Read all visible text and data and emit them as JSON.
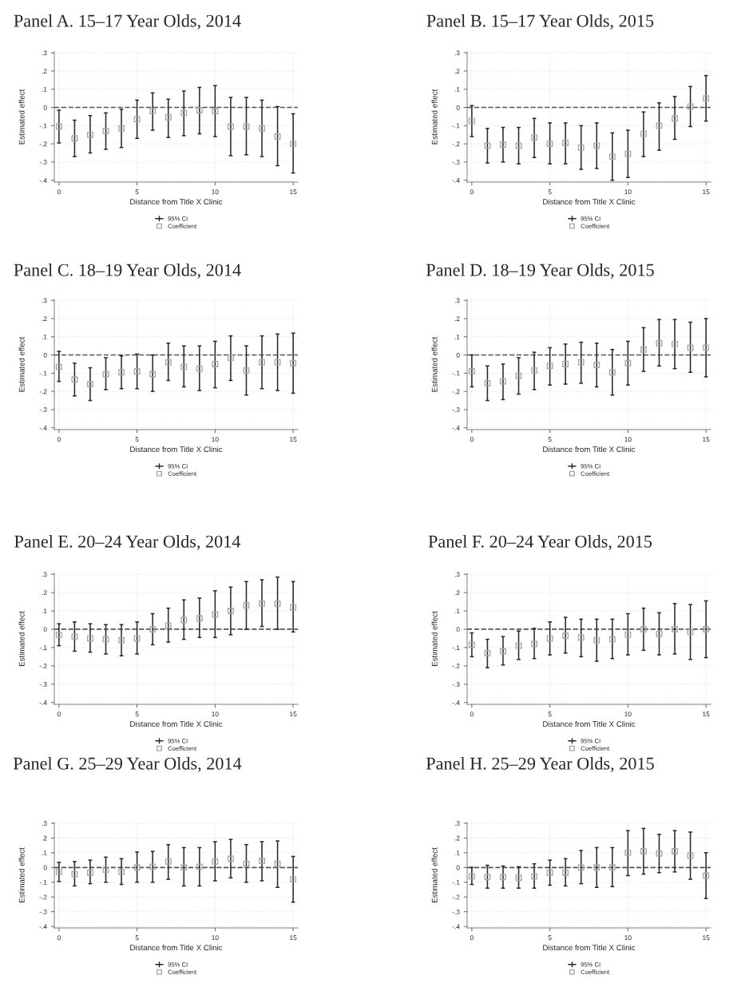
{
  "chart_data": [
    {
      "type": "scatter",
      "title": "Panel A. 15–17 Year Olds, 2014",
      "xlabel": "Distance from Title X Clinic",
      "ylabel": "Estimated effect",
      "annotations": [
        "95% CI"
      ],
      "x": [
        0,
        1,
        2,
        3,
        4,
        5,
        6,
        7,
        8,
        9,
        10,
        11,
        12,
        13,
        14,
        15
      ],
      "xlim": [
        -0.3,
        15.3
      ],
      "xticks": [
        0,
        5,
        10,
        15
      ],
      "ylim": [
        -0.41,
        0.305
      ],
      "yticks": [
        {
          "value": -0.4,
          "label": "-.4"
        },
        {
          "value": -0.3,
          "label": "-.3"
        },
        {
          "value": -0.2,
          "label": "-.2"
        },
        {
          "value": -0.1,
          "label": "-.1"
        },
        0,
        {
          "value": 0.1,
          "label": ".1"
        },
        {
          "value": 0.2,
          "label": ".2"
        },
        {
          "value": 0.3,
          "label": ".3"
        }
      ],
      "grid": true,
      "legend": "bottom",
      "marker": "square",
      "ref_lines": [
        {
          "axis": "y",
          "value": 0,
          "line_style": "dashed",
          "color": "#555555"
        }
      ],
      "series": [
        {
          "name": "Coefficient",
          "color": "#a6a6a6",
          "values": [
            -0.105,
            -0.17,
            -0.15,
            -0.13,
            -0.115,
            -0.065,
            -0.02,
            -0.055,
            -0.03,
            -0.015,
            -0.02,
            -0.105,
            -0.105,
            -0.115,
            -0.16,
            -0.2
          ],
          "errors": [
            [
              -0.195,
              -0.015
            ],
            [
              -0.27,
              -0.07
            ],
            [
              -0.25,
              -0.045
            ],
            [
              -0.23,
              -0.03
            ],
            [
              -0.22,
              -0.01
            ],
            [
              -0.17,
              0.04
            ],
            [
              -0.125,
              0.08
            ],
            [
              -0.165,
              0.045
            ],
            [
              -0.155,
              0.09
            ],
            [
              -0.145,
              0.11
            ],
            [
              -0.16,
              0.12
            ],
            [
              -0.265,
              0.055
            ],
            [
              -0.26,
              0.055
            ],
            [
              -0.27,
              0.04
            ],
            [
              -0.32,
              0.005
            ],
            [
              -0.36,
              -0.035
            ]
          ]
        }
      ]
    },
    {
      "type": "scatter",
      "title": "Panel B. 15–17 Year Olds, 2015",
      "xlabel": "Distance from Title X Clinic",
      "ylabel": "Estimated effect",
      "annotations": [
        "95% CI"
      ],
      "x": [
        0,
        1,
        2,
        3,
        4,
        5,
        6,
        7,
        8,
        9,
        10,
        11,
        12,
        13,
        14,
        15
      ],
      "xlim": [
        -0.3,
        15.3
      ],
      "xticks": [
        0,
        5,
        10,
        15
      ],
      "ylim": [
        -0.41,
        0.305
      ],
      "yticks": [
        {
          "value": -0.4,
          "label": "-.4"
        },
        {
          "value": -0.3,
          "label": "-.3"
        },
        {
          "value": -0.2,
          "label": "-.2"
        },
        {
          "value": -0.1,
          "label": "-.1"
        },
        0,
        {
          "value": 0.1,
          "label": ".1"
        },
        {
          "value": 0.2,
          "label": ".2"
        },
        {
          "value": 0.3,
          "label": ".3"
        }
      ],
      "grid": true,
      "legend": "bottom",
      "marker": "square",
      "ref_lines": [
        {
          "axis": "y",
          "value": 0,
          "line_style": "dashed",
          "color": "#555555"
        }
      ],
      "series": [
        {
          "name": "Coefficient",
          "color": "#a6a6a6",
          "values": [
            -0.075,
            -0.21,
            -0.205,
            -0.21,
            -0.165,
            -0.2,
            -0.195,
            -0.22,
            -0.21,
            -0.27,
            -0.255,
            -0.145,
            -0.1,
            -0.06,
            0.005,
            0.05
          ],
          "errors": [
            [
              -0.16,
              0.01
            ],
            [
              -0.305,
              -0.115
            ],
            [
              -0.3,
              -0.11
            ],
            [
              -0.31,
              -0.11
            ],
            [
              -0.275,
              -0.06
            ],
            [
              -0.31,
              -0.085
            ],
            [
              -0.31,
              -0.085
            ],
            [
              -0.34,
              -0.1
            ],
            [
              -0.335,
              -0.085
            ],
            [
              -0.4,
              -0.14
            ],
            [
              -0.385,
              -0.125
            ],
            [
              -0.27,
              -0.025
            ],
            [
              -0.235,
              0.025
            ],
            [
              -0.175,
              0.06
            ],
            [
              -0.105,
              0.115
            ],
            [
              -0.075,
              0.175
            ]
          ]
        }
      ]
    },
    {
      "type": "scatter",
      "title": "Panel C. 18–19 Year Olds, 2014",
      "xlabel": "Distance from Title X Clinic",
      "ylabel": "Estimated effect",
      "annotations": [
        "95% CI"
      ],
      "x": [
        0,
        1,
        2,
        3,
        4,
        5,
        6,
        7,
        8,
        9,
        10,
        11,
        12,
        13,
        14,
        15
      ],
      "xlim": [
        -0.3,
        15.3
      ],
      "xticks": [
        0,
        5,
        10,
        15
      ],
      "ylim": [
        -0.41,
        0.305
      ],
      "yticks": [
        {
          "value": -0.4,
          "label": "-.4"
        },
        {
          "value": -0.3,
          "label": "-.3"
        },
        {
          "value": -0.2,
          "label": "-.2"
        },
        {
          "value": -0.1,
          "label": "-.1"
        },
        0,
        {
          "value": 0.1,
          "label": ".1"
        },
        {
          "value": 0.2,
          "label": ".2"
        },
        {
          "value": 0.3,
          "label": ".3"
        }
      ],
      "grid": true,
      "legend": "bottom",
      "marker": "square",
      "ref_lines": [
        {
          "axis": "y",
          "value": 0,
          "line_style": "dashed",
          "color": "#555555"
        }
      ],
      "series": [
        {
          "name": "Coefficient",
          "color": "#a6a6a6",
          "values": [
            -0.065,
            -0.135,
            -0.16,
            -0.105,
            -0.095,
            -0.09,
            -0.105,
            -0.04,
            -0.065,
            -0.075,
            -0.05,
            -0.015,
            -0.085,
            -0.04,
            -0.04,
            -0.045
          ],
          "errors": [
            [
              -0.145,
              0.02
            ],
            [
              -0.225,
              -0.045
            ],
            [
              -0.25,
              -0.07
            ],
            [
              -0.19,
              -0.015
            ],
            [
              -0.185,
              -0.005
            ],
            [
              -0.185,
              0.005
            ],
            [
              -0.2,
              0
            ],
            [
              -0.14,
              0.065
            ],
            [
              -0.175,
              0.05
            ],
            [
              -0.195,
              0.05
            ],
            [
              -0.18,
              0.075
            ],
            [
              -0.14,
              0.105
            ],
            [
              -0.22,
              0.05
            ],
            [
              -0.185,
              0.105
            ],
            [
              -0.195,
              0.115
            ],
            [
              -0.21,
              0.12
            ]
          ]
        }
      ]
    },
    {
      "type": "scatter",
      "title": "Panel D. 18–19 Year Olds, 2015",
      "xlabel": "Distance from Title X Clinic",
      "ylabel": "Estimated effect",
      "annotations": [
        "95% CI"
      ],
      "x": [
        0,
        1,
        2,
        3,
        4,
        5,
        6,
        7,
        8,
        9,
        10,
        11,
        12,
        13,
        14,
        15
      ],
      "xlim": [
        -0.3,
        15.3
      ],
      "xticks": [
        0,
        5,
        10,
        15
      ],
      "ylim": [
        -0.41,
        0.305
      ],
      "yticks": [
        {
          "value": -0.4,
          "label": "-.4"
        },
        {
          "value": -0.3,
          "label": "-.3"
        },
        {
          "value": -0.2,
          "label": "-.2"
        },
        {
          "value": -0.1,
          "label": "-.1"
        },
        0,
        {
          "value": 0.1,
          "label": ".1"
        },
        {
          "value": 0.2,
          "label": ".2"
        },
        {
          "value": 0.3,
          "label": ".3"
        }
      ],
      "grid": true,
      "legend": "bottom",
      "marker": "square",
      "ref_lines": [
        {
          "axis": "y",
          "value": 0,
          "line_style": "dashed",
          "color": "#555555"
        }
      ],
      "series": [
        {
          "name": "Coefficient",
          "color": "#a6a6a6",
          "values": [
            -0.09,
            -0.155,
            -0.145,
            -0.115,
            -0.085,
            -0.06,
            -0.05,
            -0.04,
            -0.055,
            -0.095,
            -0.045,
            0.03,
            0.065,
            0.06,
            0.04,
            0.04
          ],
          "errors": [
            [
              -0.175,
              0
            ],
            [
              -0.25,
              -0.06
            ],
            [
              -0.245,
              -0.05
            ],
            [
              -0.215,
              -0.015
            ],
            [
              -0.19,
              0.015
            ],
            [
              -0.165,
              0.04
            ],
            [
              -0.16,
              0.06
            ],
            [
              -0.155,
              0.07
            ],
            [
              -0.175,
              0.065
            ],
            [
              -0.22,
              0.03
            ],
            [
              -0.165,
              0.075
            ],
            [
              -0.09,
              0.15
            ],
            [
              -0.06,
              0.195
            ],
            [
              -0.075,
              0.195
            ],
            [
              -0.095,
              0.18
            ],
            [
              -0.12,
              0.2
            ]
          ]
        }
      ]
    },
    {
      "type": "scatter",
      "title": "Panel E. 20–24 Year Olds, 2014",
      "xlabel": "Distance from Title X Clinic",
      "ylabel": "Estimated effect",
      "annotations": [
        "95% CI"
      ],
      "x": [
        0,
        1,
        2,
        3,
        4,
        5,
        6,
        7,
        8,
        9,
        10,
        11,
        12,
        13,
        14,
        15
      ],
      "xlim": [
        -0.3,
        15.3
      ],
      "xticks": [
        0,
        5,
        10,
        15
      ],
      "ylim": [
        -0.41,
        0.305
      ],
      "yticks": [
        {
          "value": -0.4,
          "label": "-.4"
        },
        {
          "value": -0.3,
          "label": "-.3"
        },
        {
          "value": -0.2,
          "label": "-.2"
        },
        {
          "value": -0.1,
          "label": "-.1"
        },
        0,
        {
          "value": 0.1,
          "label": ".1"
        },
        {
          "value": 0.2,
          "label": ".2"
        },
        {
          "value": 0.3,
          "label": ".3"
        }
      ],
      "grid": true,
      "legend": "bottom",
      "marker": "square",
      "ref_lines": [
        {
          "axis": "y",
          "value": 0,
          "line_style": "dashed",
          "color": "#555555"
        }
      ],
      "series": [
        {
          "name": "Coefficient",
          "color": "#a6a6a6",
          "values": [
            -0.03,
            -0.04,
            -0.05,
            -0.055,
            -0.06,
            -0.05,
            0,
            0.02,
            0.05,
            0.06,
            0.08,
            0.1,
            0.13,
            0.14,
            0.14,
            0.12
          ],
          "errors": [
            [
              -0.09,
              0.03
            ],
            [
              -0.12,
              0.04
            ],
            [
              -0.125,
              0.03
            ],
            [
              -0.135,
              0.025
            ],
            [
              -0.145,
              0.025
            ],
            [
              -0.135,
              0.04
            ],
            [
              -0.085,
              0.085
            ],
            [
              -0.07,
              0.115
            ],
            [
              -0.055,
              0.16
            ],
            [
              -0.045,
              0.17
            ],
            [
              -0.045,
              0.21
            ],
            [
              -0.03,
              0.23
            ],
            [
              0,
              0.26
            ],
            [
              0.015,
              0.27
            ],
            [
              0,
              0.285
            ],
            [
              -0.015,
              0.26
            ]
          ]
        }
      ]
    },
    {
      "type": "scatter",
      "title": "Panel F. 20–24 Year Olds, 2015",
      "xlabel": "Distance from Title X Clinic",
      "ylabel": "Estimated effect",
      "annotations": [
        "95% CI"
      ],
      "x": [
        0,
        1,
        2,
        3,
        4,
        5,
        6,
        7,
        8,
        9,
        10,
        11,
        12,
        13,
        14,
        15
      ],
      "xlim": [
        -0.3,
        15.3
      ],
      "xticks": [
        0,
        5,
        10,
        15
      ],
      "ylim": [
        -0.41,
        0.305
      ],
      "yticks": [
        {
          "value": -0.4,
          "label": "-.4"
        },
        {
          "value": -0.3,
          "label": "-.3"
        },
        {
          "value": -0.2,
          "label": "-.2"
        },
        {
          "value": -0.1,
          "label": "-.1"
        },
        0,
        {
          "value": 0.1,
          "label": ".1"
        },
        {
          "value": 0.2,
          "label": ".2"
        },
        {
          "value": 0.3,
          "label": ".3"
        }
      ],
      "grid": true,
      "legend": "bottom",
      "marker": "square",
      "ref_lines": [
        {
          "axis": "y",
          "value": 0,
          "line_style": "dashed",
          "color": "#555555"
        }
      ],
      "series": [
        {
          "name": "Coefficient",
          "color": "#a6a6a6",
          "values": [
            -0.085,
            -0.13,
            -0.12,
            -0.09,
            -0.08,
            -0.05,
            -0.035,
            -0.045,
            -0.06,
            -0.055,
            -0.03,
            0,
            -0.025,
            0,
            -0.015,
            0
          ],
          "errors": [
            [
              -0.15,
              -0.02
            ],
            [
              -0.21,
              -0.055
            ],
            [
              -0.195,
              -0.04
            ],
            [
              -0.165,
              -0.01
            ],
            [
              -0.16,
              0.005
            ],
            [
              -0.14,
              0.04
            ],
            [
              -0.13,
              0.065
            ],
            [
              -0.15,
              0.055
            ],
            [
              -0.175,
              0.055
            ],
            [
              -0.16,
              0.055
            ],
            [
              -0.14,
              0.085
            ],
            [
              -0.115,
              0.115
            ],
            [
              -0.14,
              0.09
            ],
            [
              -0.135,
              0.14
            ],
            [
              -0.165,
              0.135
            ],
            [
              -0.155,
              0.155
            ]
          ]
        }
      ]
    },
    {
      "type": "scatter",
      "title": "Panel G. 25–29 Year Olds, 2014",
      "xlabel": "Distance from Title X Clinic",
      "ylabel": "Estimated effect",
      "annotations": [
        "95% CI"
      ],
      "x": [
        0,
        1,
        2,
        3,
        4,
        5,
        6,
        7,
        8,
        9,
        10,
        11,
        12,
        13,
        14,
        15
      ],
      "xlim": [
        -0.3,
        15.3
      ],
      "xticks": [
        0,
        5,
        10,
        15
      ],
      "ylim": [
        -0.41,
        0.305
      ],
      "yticks": [
        {
          "value": -0.4,
          "label": "-.4"
        },
        {
          "value": -0.3,
          "label": "-.3"
        },
        {
          "value": -0.2,
          "label": "-.2"
        },
        {
          "value": -0.1,
          "label": "-.1"
        },
        0,
        {
          "value": 0.1,
          "label": ".1"
        },
        {
          "value": 0.2,
          "label": ".2"
        },
        {
          "value": 0.3,
          "label": ".3"
        }
      ],
      "grid": true,
      "legend": "bottom",
      "marker": "square",
      "ref_lines": [
        {
          "axis": "y",
          "value": 0,
          "line_style": "dashed",
          "color": "#555555"
        }
      ],
      "series": [
        {
          "name": "Coefficient",
          "color": "#a6a6a6",
          "values": [
            -0.03,
            -0.045,
            -0.035,
            -0.015,
            -0.03,
            0,
            0.005,
            0.04,
            0,
            0.005,
            0.04,
            0.06,
            0.025,
            0.045,
            0.025,
            -0.08
          ],
          "errors": [
            [
              -0.095,
              0.035
            ],
            [
              -0.125,
              0.04
            ],
            [
              -0.11,
              0.05
            ],
            [
              -0.1,
              0.07
            ],
            [
              -0.115,
              0.06
            ],
            [
              -0.1,
              0.105
            ],
            [
              -0.1,
              0.11
            ],
            [
              -0.08,
              0.155
            ],
            [
              -0.125,
              0.135
            ],
            [
              -0.125,
              0.135
            ],
            [
              -0.09,
              0.175
            ],
            [
              -0.07,
              0.19
            ],
            [
              -0.1,
              0.155
            ],
            [
              -0.09,
              0.175
            ],
            [
              -0.135,
              0.18
            ],
            [
              -0.235,
              0.075
            ]
          ]
        }
      ]
    },
    {
      "type": "scatter",
      "title": "Panel H. 25–29 Year Olds, 2015",
      "xlabel": "Distance from Title X Clinic",
      "ylabel": "Estimated effect",
      "annotations": [
        "95% CI"
      ],
      "x": [
        0,
        1,
        2,
        3,
        4,
        5,
        6,
        7,
        8,
        9,
        10,
        11,
        12,
        13,
        14,
        15
      ],
      "xlim": [
        -0.3,
        15.3
      ],
      "xticks": [
        0,
        5,
        10,
        15
      ],
      "ylim": [
        -0.41,
        0.305
      ],
      "yticks": [
        {
          "value": -0.4,
          "label": "-.4"
        },
        {
          "value": -0.3,
          "label": "-.3"
        },
        {
          "value": -0.2,
          "label": "-.2"
        },
        {
          "value": -0.1,
          "label": "-.1"
        },
        0,
        {
          "value": 0.1,
          "label": ".1"
        },
        {
          "value": 0.2,
          "label": ".2"
        },
        {
          "value": 0.3,
          "label": ".3"
        }
      ],
      "grid": true,
      "legend": "bottom",
      "marker": "square",
      "ref_lines": [
        {
          "axis": "y",
          "value": 0,
          "line_style": "dashed",
          "color": "#555555"
        }
      ],
      "series": [
        {
          "name": "Coefficient",
          "color": "#a6a6a6",
          "values": [
            -0.06,
            -0.065,
            -0.065,
            -0.07,
            -0.06,
            -0.035,
            -0.035,
            0,
            0,
            0,
            0.1,
            0.11,
            0.095,
            0.11,
            0.08,
            -0.055
          ],
          "errors": [
            [
              -0.115,
              0
            ],
            [
              -0.14,
              0.015
            ],
            [
              -0.14,
              0.01
            ],
            [
              -0.14,
              0.005
            ],
            [
              -0.14,
              0.025
            ],
            [
              -0.12,
              0.05
            ],
            [
              -0.125,
              0.06
            ],
            [
              -0.11,
              0.115
            ],
            [
              -0.135,
              0.135
            ],
            [
              -0.13,
              0.135
            ],
            [
              -0.055,
              0.25
            ],
            [
              -0.045,
              0.265
            ],
            [
              -0.035,
              0.225
            ],
            [
              -0.03,
              0.25
            ],
            [
              -0.08,
              0.24
            ],
            [
              -0.21,
              0.1
            ]
          ]
        }
      ]
    }
  ]
}
